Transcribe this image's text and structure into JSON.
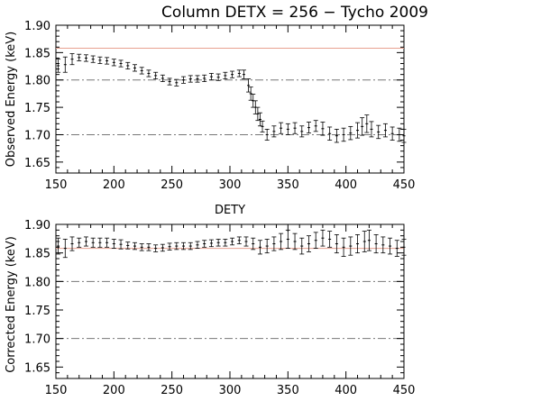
{
  "title": "Column DETX = 256 − Tycho 2009",
  "colors": {
    "reference": "#e8a090",
    "guide": "#777777",
    "data": "#000000"
  },
  "chart_data": [
    {
      "type": "scatter",
      "name": "observed",
      "xlabel": "DETY",
      "ylabel": "Observed Energy (keV)",
      "xlim": [
        150,
        450
      ],
      "ylim": [
        1.63,
        1.9
      ],
      "xticks": [
        "150",
        "200",
        "250",
        "300",
        "350",
        "400",
        "450"
      ],
      "yticks": [
        "1.65",
        "1.70",
        "1.75",
        "1.80",
        "1.85",
        "1.90"
      ],
      "reference_line": 1.858,
      "guide_lines": [
        1.8,
        1.7
      ],
      "error_bars": true,
      "x": [
        152,
        158,
        164,
        170,
        176,
        182,
        188,
        194,
        200,
        206,
        212,
        218,
        224,
        230,
        236,
        242,
        248,
        254,
        260,
        266,
        272,
        278,
        284,
        290,
        296,
        302,
        308,
        312,
        316,
        318,
        320,
        322,
        324,
        326,
        328,
        332,
        338,
        344,
        350,
        356,
        362,
        368,
        374,
        380,
        386,
        392,
        398,
        404,
        410,
        414,
        418,
        422,
        428,
        434,
        440,
        446,
        450
      ],
      "y": [
        1.826,
        1.828,
        1.838,
        1.841,
        1.84,
        1.838,
        1.836,
        1.835,
        1.832,
        1.83,
        1.826,
        1.822,
        1.817,
        1.812,
        1.808,
        1.803,
        1.797,
        1.795,
        1.8,
        1.802,
        1.802,
        1.803,
        1.806,
        1.805,
        1.808,
        1.81,
        1.812,
        1.81,
        1.79,
        1.775,
        1.762,
        1.75,
        1.738,
        1.728,
        1.715,
        1.7,
        1.706,
        1.712,
        1.71,
        1.712,
        1.706,
        1.713,
        1.716,
        1.711,
        1.702,
        1.698,
        1.7,
        1.703,
        1.708,
        1.715,
        1.72,
        1.71,
        1.705,
        1.708,
        1.702,
        1.7,
        1.698
      ],
      "err": [
        0.012,
        0.014,
        0.01,
        0.006,
        0.006,
        0.006,
        0.006,
        0.006,
        0.006,
        0.006,
        0.006,
        0.006,
        0.006,
        0.006,
        0.006,
        0.006,
        0.006,
        0.006,
        0.006,
        0.006,
        0.006,
        0.006,
        0.006,
        0.006,
        0.006,
        0.006,
        0.006,
        0.008,
        0.012,
        0.012,
        0.012,
        0.012,
        0.012,
        0.012,
        0.01,
        0.01,
        0.01,
        0.01,
        0.01,
        0.01,
        0.01,
        0.01,
        0.01,
        0.012,
        0.012,
        0.012,
        0.012,
        0.012,
        0.014,
        0.016,
        0.016,
        0.014,
        0.012,
        0.012,
        0.012,
        0.012,
        0.012
      ]
    },
    {
      "type": "scatter",
      "name": "corrected",
      "xlabel": "",
      "ylabel": "Corrected Energy (keV)",
      "xlim": [
        150,
        450
      ],
      "ylim": [
        1.63,
        1.9
      ],
      "xticks": [
        "150",
        "200",
        "250",
        "300",
        "350",
        "400",
        "450"
      ],
      "yticks": [
        "1.65",
        "1.70",
        "1.75",
        "1.80",
        "1.85",
        "1.90"
      ],
      "reference_line": 1.858,
      "guide_lines": [
        1.8,
        1.7
      ],
      "error_bars": true,
      "x": [
        152,
        158,
        164,
        170,
        176,
        182,
        188,
        194,
        200,
        206,
        212,
        218,
        224,
        230,
        236,
        242,
        248,
        254,
        260,
        266,
        272,
        278,
        284,
        290,
        296,
        302,
        308,
        314,
        320,
        326,
        332,
        338,
        344,
        350,
        356,
        362,
        368,
        374,
        380,
        386,
        392,
        398,
        404,
        410,
        416,
        420,
        426,
        432,
        438,
        444,
        450
      ],
      "y": [
        1.862,
        1.858,
        1.866,
        1.868,
        1.87,
        1.868,
        1.868,
        1.868,
        1.866,
        1.865,
        1.863,
        1.862,
        1.86,
        1.86,
        1.858,
        1.859,
        1.861,
        1.862,
        1.862,
        1.862,
        1.864,
        1.866,
        1.867,
        1.868,
        1.868,
        1.87,
        1.872,
        1.87,
        1.866,
        1.86,
        1.862,
        1.866,
        1.87,
        1.874,
        1.87,
        1.862,
        1.866,
        1.872,
        1.876,
        1.874,
        1.866,
        1.86,
        1.862,
        1.866,
        1.87,
        1.872,
        1.866,
        1.864,
        1.862,
        1.858,
        1.86
      ],
      "err": [
        0.014,
        0.016,
        0.012,
        0.008,
        0.008,
        0.008,
        0.008,
        0.008,
        0.008,
        0.008,
        0.006,
        0.006,
        0.006,
        0.006,
        0.006,
        0.006,
        0.006,
        0.006,
        0.006,
        0.006,
        0.006,
        0.006,
        0.006,
        0.006,
        0.006,
        0.006,
        0.006,
        0.008,
        0.01,
        0.012,
        0.012,
        0.012,
        0.014,
        0.016,
        0.014,
        0.014,
        0.014,
        0.014,
        0.014,
        0.014,
        0.016,
        0.016,
        0.016,
        0.016,
        0.018,
        0.018,
        0.016,
        0.014,
        0.014,
        0.014,
        0.014
      ]
    }
  ]
}
